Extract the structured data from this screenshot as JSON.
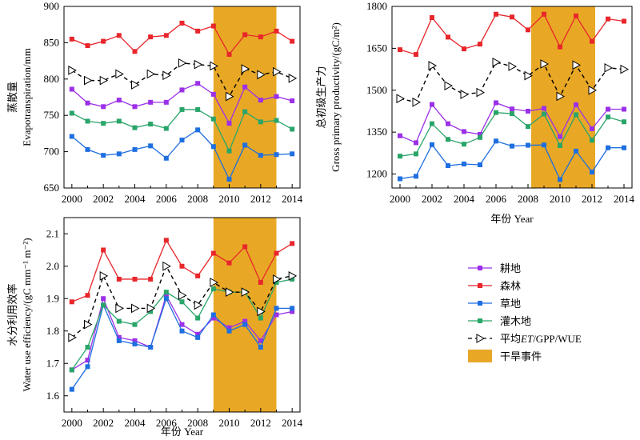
{
  "chart_data": [
    {
      "type": "line",
      "panel": "evapotranspiration",
      "ylabel_cn": "蒸散量",
      "ylabel_en": "Evapotranspiration/mm",
      "xlabel": "",
      "x": [
        2000,
        2001,
        2002,
        2003,
        2004,
        2005,
        2006,
        2007,
        2008,
        2009,
        2010,
        2011,
        2012,
        2013,
        2014
      ],
      "xticks": [
        "2000",
        "2002",
        "2004",
        "2006",
        "2008",
        "2010",
        "2012",
        "2014"
      ],
      "yticks": [
        "650",
        "700",
        "750",
        "800",
        "850",
        "900"
      ],
      "ylim": [
        650,
        900
      ],
      "drought_span": [
        2009,
        2013
      ],
      "series": [
        {
          "name": "耕地",
          "values": [
            786,
            767,
            762,
            771,
            762,
            768,
            768,
            785,
            794,
            779,
            739,
            789,
            771,
            776,
            770
          ]
        },
        {
          "name": "森林",
          "values": [
            855,
            846,
            852,
            860,
            838,
            858,
            860,
            877,
            866,
            873,
            834,
            861,
            858,
            866,
            852
          ]
        },
        {
          "name": "草地",
          "values": [
            721,
            703,
            695,
            697,
            703,
            708,
            691,
            716,
            730,
            707,
            662,
            709,
            695,
            696,
            697
          ]
        },
        {
          "name": "灌木地",
          "values": [
            753,
            742,
            739,
            742,
            733,
            738,
            732,
            758,
            758,
            745,
            701,
            755,
            741,
            743,
            731
          ]
        },
        {
          "name": "平均ET/GPP/WUE",
          "values": [
            812,
            798,
            798,
            807,
            792,
            807,
            805,
            822,
            820,
            818,
            776,
            814,
            806,
            810,
            801
          ]
        }
      ]
    },
    {
      "type": "line",
      "panel": "gross_primary_productivity",
      "ylabel_cn": "总初级生产力",
      "ylabel_en": "Gross primary productivity/(gC/m²)",
      "xlabel": "年份 Year",
      "x": [
        2000,
        2001,
        2002,
        2003,
        2004,
        2005,
        2006,
        2007,
        2008,
        2009,
        2010,
        2011,
        2012,
        2013,
        2014
      ],
      "xticks": [
        "2000",
        "2002",
        "2004",
        "2006",
        "2008",
        "2010",
        "2012",
        "2014"
      ],
      "yticks": [
        "1200",
        "1350",
        "1500",
        "1650",
        "1800"
      ],
      "ylim": [
        1150,
        1800
      ],
      "drought_span": [
        2008.2,
        2012.2
      ],
      "series": [
        {
          "name": "耕地",
          "values": [
            1337,
            1312,
            1449,
            1380,
            1352,
            1342,
            1455,
            1433,
            1425,
            1435,
            1334,
            1448,
            1362,
            1432,
            1432
          ]
        },
        {
          "name": "森林",
          "values": [
            1645,
            1628,
            1760,
            1690,
            1648,
            1665,
            1772,
            1762,
            1716,
            1772,
            1655,
            1766,
            1675,
            1755,
            1747
          ]
        },
        {
          "name": "草地",
          "values": [
            1183,
            1192,
            1305,
            1230,
            1236,
            1233,
            1318,
            1300,
            1303,
            1304,
            1180,
            1282,
            1207,
            1294,
            1294
          ]
        },
        {
          "name": "灌木地",
          "values": [
            1264,
            1272,
            1380,
            1324,
            1307,
            1331,
            1420,
            1416,
            1370,
            1415,
            1302,
            1412,
            1321,
            1404,
            1387
          ]
        },
        {
          "name": "平均ET/GPP/WUE",
          "values": [
            1470,
            1457,
            1588,
            1516,
            1485,
            1492,
            1600,
            1585,
            1552,
            1594,
            1478,
            1590,
            1500,
            1580,
            1575
          ]
        }
      ]
    },
    {
      "type": "line",
      "panel": "water_use_efficiency",
      "ylabel_cn": "水分利用效率",
      "ylabel_en": "Water use efficiency/(gC mm⁻¹ m⁻²)",
      "xlabel": "年份 Year",
      "x": [
        2000,
        2001,
        2002,
        2003,
        2004,
        2005,
        2006,
        2007,
        2008,
        2009,
        2010,
        2011,
        2012,
        2013,
        2014
      ],
      "xticks": [
        "2000",
        "2002",
        "2004",
        "2006",
        "2008",
        "2010",
        "2012",
        "2014"
      ],
      "yticks": [
        "1.6",
        "1.7",
        "1.8",
        "1.9",
        "2.0",
        "2.1"
      ],
      "ylim": [
        1.55,
        2.15
      ],
      "drought_span": [
        2009,
        2013
      ],
      "series": [
        {
          "name": "耕地",
          "values": [
            1.68,
            1.71,
            1.9,
            1.78,
            1.77,
            1.75,
            1.91,
            1.82,
            1.79,
            1.84,
            1.81,
            1.83,
            1.77,
            1.85,
            1.86
          ]
        },
        {
          "name": "森林",
          "values": [
            1.89,
            1.91,
            2.05,
            1.96,
            1.96,
            1.96,
            2.08,
            2.0,
            1.97,
            2.04,
            2.01,
            2.06,
            1.95,
            2.04,
            2.07
          ]
        },
        {
          "name": "草地",
          "values": [
            1.62,
            1.69,
            1.88,
            1.77,
            1.76,
            1.75,
            1.9,
            1.8,
            1.78,
            1.85,
            1.8,
            1.82,
            1.75,
            1.87,
            1.87
          ]
        },
        {
          "name": "灌木地",
          "values": [
            1.68,
            1.75,
            1.88,
            1.83,
            1.82,
            1.86,
            1.92,
            1.89,
            1.84,
            1.93,
            1.92,
            1.92,
            1.84,
            1.95,
            1.96
          ]
        },
        {
          "name": "平均ET/GPP/WUE",
          "values": [
            1.78,
            1.82,
            1.97,
            1.87,
            1.87,
            1.87,
            2.0,
            1.91,
            1.88,
            1.95,
            1.92,
            1.92,
            1.86,
            1.96,
            1.97
          ]
        }
      ]
    }
  ],
  "legend": {
    "items": [
      {
        "label": "耕地",
        "color": "#9b30e8",
        "marker": "square",
        "style": "solid"
      },
      {
        "label": "森林",
        "color": "#e8262b",
        "marker": "square",
        "style": "solid"
      },
      {
        "label": "草地",
        "color": "#1e6fe0",
        "marker": "square",
        "style": "solid"
      },
      {
        "label": "灌木地",
        "color": "#2aa56a",
        "marker": "square",
        "style": "solid"
      },
      {
        "label_prefix": "平均",
        "label_italic": "ET",
        "label_suffix": "/GPP/WUE",
        "color": "#000000",
        "marker": "triangle-open",
        "style": "dashed"
      },
      {
        "label": "干旱事件",
        "color": "#e8a825",
        "marker": "box",
        "style": "fill"
      }
    ]
  },
  "colors": {
    "drought": "#e8a825"
  }
}
